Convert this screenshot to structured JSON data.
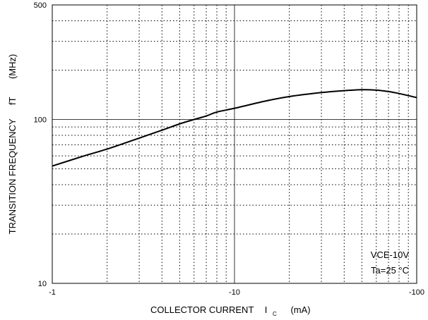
{
  "chart_data": {
    "type": "line",
    "title": "",
    "xlabel": "COLLECTOR CURRENT",
    "xlabel_symbol": "I",
    "xlabel_subscript": "C",
    "xlabel_unit": "(mA)",
    "ylabel": "TRANSITION FREQUENCY",
    "ylabel_symbol": "fT",
    "ylabel_unit": "(MHz)",
    "x_scale": "log",
    "y_scale": "log",
    "xlim": [
      -1,
      -100
    ],
    "ylim": [
      10,
      500
    ],
    "x_ticks": [
      {
        "value": -1,
        "label": "-1"
      },
      {
        "value": -10,
        "label": "-10"
      },
      {
        "value": -100,
        "label": "-100"
      }
    ],
    "y_ticks": [
      {
        "value": 10,
        "label": "10"
      },
      {
        "value": 100,
        "label": "100"
      },
      {
        "value": 500,
        "label": "500"
      }
    ],
    "grid": "dotted-minor",
    "annotations": [
      "VCE-10V",
      "Ta=25 °C"
    ],
    "series": [
      {
        "x": [
          -1,
          -1.5,
          -2,
          -3,
          -4,
          -5,
          -6,
          -7,
          -8,
          -10,
          -15,
          -20,
          -30,
          -40,
          -50,
          -60,
          -70,
          -80,
          -100
        ],
        "y": [
          52,
          60,
          66,
          77,
          86,
          94,
          100,
          105,
          111,
          117,
          130,
          138,
          146,
          150,
          152,
          151,
          148,
          144,
          136
        ]
      }
    ]
  }
}
